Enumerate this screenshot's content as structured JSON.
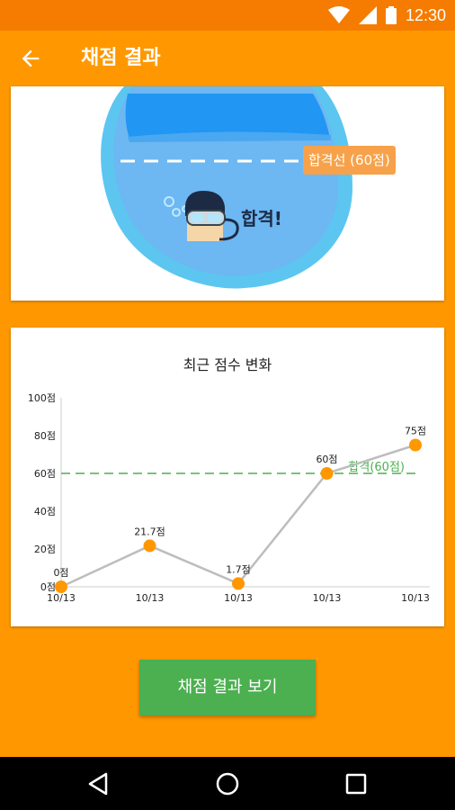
{
  "status_bar": {
    "time": "12:30",
    "icons": [
      "wifi-icon",
      "signal-icon",
      "battery-icon"
    ]
  },
  "app_bar": {
    "title": "채점 결과",
    "back_icon": "arrow-back-icon"
  },
  "result_card": {
    "pass_line_label": "합격선 (60점)",
    "result_text": "합격!",
    "pass_line_score": 60
  },
  "chart_card": {
    "title": "최근 점수 변화",
    "chart_data": {
      "type": "line",
      "title": "최근 점수 변화",
      "categories": [
        "10/13",
        "10/13",
        "10/13",
        "10/13",
        "10/13"
      ],
      "values": [
        0,
        21.7,
        1.7,
        60,
        75
      ],
      "value_labels": [
        "0점",
        "21.7점",
        "1.7점",
        "60점",
        "75점"
      ],
      "y_ticks": [
        "0점",
        "20점",
        "40점",
        "60점",
        "80점",
        "100점"
      ],
      "ylim": [
        0,
        100
      ],
      "threshold": {
        "value": 60,
        "label": "합격(60점)",
        "color": "#4CAF50"
      },
      "line_color": "#BDBDBD",
      "point_color": "#FF9800"
    }
  },
  "cta_button": {
    "label": "채점 결과 보기"
  },
  "nav_bar": {
    "icons": [
      "back-triangle-icon",
      "home-circle-icon",
      "recents-square-icon"
    ]
  },
  "colors": {
    "primary": "#FF9800",
    "primary_dark": "#F57C00",
    "accent_green": "#4CAF50"
  }
}
